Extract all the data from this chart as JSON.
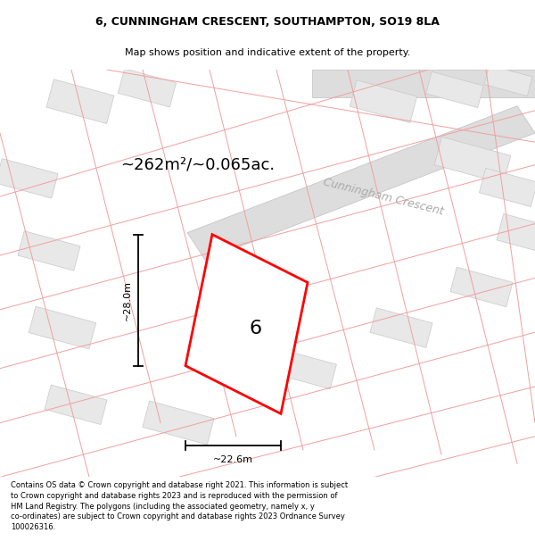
{
  "title_line1": "6, CUNNINGHAM CRESCENT, SOUTHAMPTON, SO19 8LA",
  "title_line2": "Map shows position and indicative extent of the property.",
  "area_label": "~262m²/~0.065ac.",
  "number_label": "6",
  "width_label": "~22.6m",
  "height_label": "~28.0m",
  "road_label": "Cunningham Crescent",
  "footer_text": "Contains OS data © Crown copyright and database right 2021. This information is subject to Crown copyright and database rights 2023 and is reproduced with the permission of HM Land Registry. The polygons (including the associated geometry, namely x, y co-ordinates) are subject to Crown copyright and database rights 2023 Ordnance Survey 100026316.",
  "bg_color": "#f2f2f2",
  "map_bg": "#ffffff",
  "property_color": "#ff0000",
  "bldg_fill": "#e8e8e8",
  "bldg_edge": "#c8c8c8",
  "road_fill": "#dddddd",
  "cadastral_color": "#f0a0a0",
  "title_fontsize": 9,
  "subtitle_fontsize": 8,
  "area_fontsize": 13,
  "dim_fontsize": 8,
  "road_fontsize": 9,
  "number_fontsize": 16,
  "footer_fontsize": 6
}
